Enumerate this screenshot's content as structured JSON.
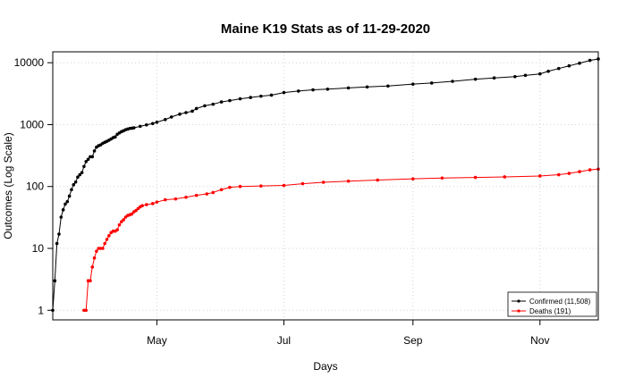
{
  "chart_data": {
    "type": "line",
    "title": "Maine K19 Stats as of 11-29-2020",
    "xlabel": "Days",
    "ylabel": "Outcomes (Log Scale)",
    "x_axis": {
      "type": "date",
      "range": [
        "2020-03-12",
        "2020-11-29"
      ],
      "ticks": [
        {
          "date": "2020-05-01",
          "label": "May"
        },
        {
          "date": "2020-07-01",
          "label": "Jul"
        },
        {
          "date": "2020-09-01",
          "label": "Sep"
        },
        {
          "date": "2020-11-01",
          "label": "Nov"
        }
      ]
    },
    "y_axis": {
      "scale": "log",
      "range": [
        0.7,
        15000
      ],
      "ticks": [
        1,
        10,
        100,
        1000,
        10000
      ],
      "tick_labels": [
        "1",
        "10",
        "100",
        "1000",
        "10000"
      ]
    },
    "grid": true,
    "legend": "bottom-right",
    "series": [
      {
        "name": "Confirmed (11,508)",
        "color": "#000000",
        "points": [
          [
            "2020-03-12",
            1
          ],
          [
            "2020-03-13",
            3
          ],
          [
            "2020-03-14",
            12
          ],
          [
            "2020-03-15",
            17
          ],
          [
            "2020-03-16",
            32
          ],
          [
            "2020-03-17",
            42
          ],
          [
            "2020-03-18",
            52
          ],
          [
            "2020-03-19",
            57
          ],
          [
            "2020-03-20",
            70
          ],
          [
            "2020-03-21",
            89
          ],
          [
            "2020-03-22",
            107
          ],
          [
            "2020-03-23",
            118
          ],
          [
            "2020-03-24",
            142
          ],
          [
            "2020-03-25",
            155
          ],
          [
            "2020-03-26",
            168
          ],
          [
            "2020-03-27",
            211
          ],
          [
            "2020-03-28",
            253
          ],
          [
            "2020-03-29",
            275
          ],
          [
            "2020-03-30",
            303
          ],
          [
            "2020-03-31",
            303
          ],
          [
            "2020-04-01",
            376
          ],
          [
            "2020-04-02",
            432
          ],
          [
            "2020-04-03",
            456
          ],
          [
            "2020-04-04",
            470
          ],
          [
            "2020-04-05",
            499
          ],
          [
            "2020-04-06",
            519
          ],
          [
            "2020-04-07",
            537
          ],
          [
            "2020-04-08",
            560
          ],
          [
            "2020-04-09",
            586
          ],
          [
            "2020-04-10",
            616
          ],
          [
            "2020-04-11",
            633
          ],
          [
            "2020-04-12",
            698
          ],
          [
            "2020-04-13",
            734
          ],
          [
            "2020-04-14",
            770
          ],
          [
            "2020-04-15",
            796
          ],
          [
            "2020-04-16",
            827
          ],
          [
            "2020-04-17",
            847
          ],
          [
            "2020-04-18",
            867
          ],
          [
            "2020-04-19",
            875
          ],
          [
            "2020-04-20",
            888
          ],
          [
            "2020-04-23",
            937
          ],
          [
            "2020-04-26",
            990
          ],
          [
            "2020-04-29",
            1040
          ],
          [
            "2020-05-01",
            1095
          ],
          [
            "2020-05-05",
            1205
          ],
          [
            "2020-05-08",
            1330
          ],
          [
            "2020-05-12",
            1477
          ],
          [
            "2020-05-15",
            1565
          ],
          [
            "2020-05-18",
            1648
          ],
          [
            "2020-05-20",
            1819
          ],
          [
            "2020-05-24",
            2013
          ],
          [
            "2020-05-28",
            2137
          ],
          [
            "2020-06-01",
            2325
          ],
          [
            "2020-06-05",
            2443
          ],
          [
            "2020-06-10",
            2610
          ],
          [
            "2020-06-15",
            2747
          ],
          [
            "2020-06-20",
            2878
          ],
          [
            "2020-06-25",
            2995
          ],
          [
            "2020-07-01",
            3294
          ],
          [
            "2020-07-08",
            3486
          ],
          [
            "2020-07-15",
            3647
          ],
          [
            "2020-07-22",
            3737
          ],
          [
            "2020-08-01",
            3919
          ],
          [
            "2020-08-10",
            4061
          ],
          [
            "2020-08-20",
            4203
          ],
          [
            "2020-09-01",
            4509
          ],
          [
            "2020-09-10",
            4700
          ],
          [
            "2020-09-20",
            5005
          ],
          [
            "2020-10-01",
            5419
          ],
          [
            "2020-10-10",
            5676
          ],
          [
            "2020-10-20",
            5958
          ],
          [
            "2020-10-25",
            6245
          ],
          [
            "2020-11-01",
            6600
          ],
          [
            "2020-11-05",
            7270
          ],
          [
            "2020-11-10",
            8060
          ],
          [
            "2020-11-15",
            8900
          ],
          [
            "2020-11-20",
            9830
          ],
          [
            "2020-11-25",
            10900
          ],
          [
            "2020-11-29",
            11508
          ]
        ]
      },
      {
        "name": "Deaths (191)",
        "color": "#ff0000",
        "points": [
          [
            "2020-03-27",
            1
          ],
          [
            "2020-03-28",
            1
          ],
          [
            "2020-03-29",
            3
          ],
          [
            "2020-03-30",
            3
          ],
          [
            "2020-03-31",
            5
          ],
          [
            "2020-04-01",
            7
          ],
          [
            "2020-04-02",
            9
          ],
          [
            "2020-04-03",
            10
          ],
          [
            "2020-04-04",
            10
          ],
          [
            "2020-04-05",
            10
          ],
          [
            "2020-04-06",
            12
          ],
          [
            "2020-04-07",
            14
          ],
          [
            "2020-04-08",
            16
          ],
          [
            "2020-04-09",
            18
          ],
          [
            "2020-04-10",
            19
          ],
          [
            "2020-04-11",
            19
          ],
          [
            "2020-04-12",
            20
          ],
          [
            "2020-04-13",
            24
          ],
          [
            "2020-04-14",
            27
          ],
          [
            "2020-04-15",
            29
          ],
          [
            "2020-04-16",
            32
          ],
          [
            "2020-04-17",
            34
          ],
          [
            "2020-04-18",
            35
          ],
          [
            "2020-04-19",
            36
          ],
          [
            "2020-04-20",
            39
          ],
          [
            "2020-04-21",
            41
          ],
          [
            "2020-04-22",
            44
          ],
          [
            "2020-04-23",
            47
          ],
          [
            "2020-04-24",
            49
          ],
          [
            "2020-04-26",
            51
          ],
          [
            "2020-04-29",
            53
          ],
          [
            "2020-05-01",
            56
          ],
          [
            "2020-05-05",
            61
          ],
          [
            "2020-05-10",
            63
          ],
          [
            "2020-05-15",
            67
          ],
          [
            "2020-05-20",
            72
          ],
          [
            "2020-05-25",
            76
          ],
          [
            "2020-05-28",
            80
          ],
          [
            "2020-06-01",
            89
          ],
          [
            "2020-06-05",
            97
          ],
          [
            "2020-06-10",
            100
          ],
          [
            "2020-06-20",
            102
          ],
          [
            "2020-07-01",
            104
          ],
          [
            "2020-07-10",
            111
          ],
          [
            "2020-07-20",
            117
          ],
          [
            "2020-08-01",
            122
          ],
          [
            "2020-08-15",
            127
          ],
          [
            "2020-09-01",
            133
          ],
          [
            "2020-09-15",
            137
          ],
          [
            "2020-10-01",
            140
          ],
          [
            "2020-10-15",
            143
          ],
          [
            "2020-11-01",
            148
          ],
          [
            "2020-11-10",
            155
          ],
          [
            "2020-11-15",
            163
          ],
          [
            "2020-11-20",
            174
          ],
          [
            "2020-11-25",
            186
          ],
          [
            "2020-11-29",
            191
          ]
        ]
      }
    ]
  }
}
